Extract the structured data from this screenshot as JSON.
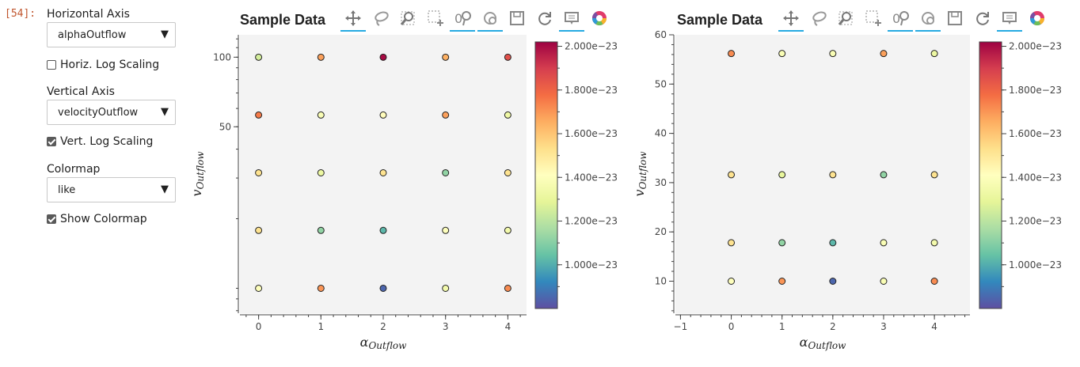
{
  "cell_prompt": "[54]:",
  "controls": {
    "horizontal_axis_label": "Horizontal Axis",
    "horizontal_axis_value": "alphaOutflow",
    "horiz_log_label": "Horiz. Log Scaling",
    "horiz_log_checked": false,
    "vertical_axis_label": "Vertical Axis",
    "vertical_axis_value": "velocityOutflow",
    "vert_log_label": "Vert. Log Scaling",
    "vert_log_checked": true,
    "colormap_label": "Colormap",
    "colormap_value": "like",
    "show_colormap_label": "Show Colormap",
    "show_colormap_checked": true
  },
  "toolbar_icons": [
    "pan-icon",
    "lasso-select-icon",
    "box-zoom-icon",
    "box-select-icon",
    "wheel-zoom-icon",
    "reset-zoom-icon",
    "save-icon",
    "reset-icon",
    "hover-icon",
    "bokeh-logo-icon"
  ],
  "chart_data": [
    {
      "type": "scatter",
      "title": "Sample Data",
      "xlabel": "α",
      "xlabel_sub": "Outflow",
      "ylabel": "v",
      "ylabel_sub": "Outflow",
      "y_scale": "log",
      "xlim": [
        -0.3,
        4.3
      ],
      "ylim": [
        7.8,
        125
      ],
      "x_ticks": [
        "0",
        "1",
        "2",
        "3",
        "4"
      ],
      "y_ticks": [
        "100",
        "50"
      ],
      "y_tick_values": [
        100,
        50
      ],
      "colorbar": {
        "min": 8e-24,
        "max": 2.02e-23,
        "ticks": [
          "1.000e−23",
          "1.200e−23",
          "1.400e−23",
          "1.600e−23",
          "1.800e−23",
          "2.000e−23"
        ],
        "tick_values": [
          1e-23,
          1.2e-23,
          1.4e-23,
          1.6e-23,
          1.8e-23,
          2e-23
        ]
      },
      "points": [
        {
          "x": 0,
          "y": 100,
          "c": 1.25e-23
        },
        {
          "x": 1,
          "y": 100,
          "c": 1.68e-23
        },
        {
          "x": 2,
          "y": 100,
          "c": 2e-23
        },
        {
          "x": 3,
          "y": 100,
          "c": 1.65e-23
        },
        {
          "x": 4,
          "y": 100,
          "c": 1.85e-23
        },
        {
          "x": 0,
          "y": 56.2,
          "c": 1.75e-23
        },
        {
          "x": 1,
          "y": 56.2,
          "c": 1.38e-23
        },
        {
          "x": 2,
          "y": 56.2,
          "c": 1.42e-23
        },
        {
          "x": 3,
          "y": 56.2,
          "c": 1.68e-23
        },
        {
          "x": 4,
          "y": 56.2,
          "c": 1.33e-23
        },
        {
          "x": 0,
          "y": 31.6,
          "c": 1.52e-23
        },
        {
          "x": 1,
          "y": 31.6,
          "c": 1.32e-23
        },
        {
          "x": 2,
          "y": 31.6,
          "c": 1.52e-23
        },
        {
          "x": 3,
          "y": 31.6,
          "c": 1.12e-23
        },
        {
          "x": 4,
          "y": 31.6,
          "c": 1.52e-23
        },
        {
          "x": 0,
          "y": 17.8,
          "c": 1.52e-23
        },
        {
          "x": 1,
          "y": 17.8,
          "c": 1.12e-23
        },
        {
          "x": 2,
          "y": 17.8,
          "c": 1.02e-23
        },
        {
          "x": 3,
          "y": 17.8,
          "c": 1.4e-23
        },
        {
          "x": 4,
          "y": 17.8,
          "c": 1.35e-23
        },
        {
          "x": 0,
          "y": 10,
          "c": 1.4e-23
        },
        {
          "x": 1,
          "y": 10,
          "c": 1.7e-23
        },
        {
          "x": 2,
          "y": 10,
          "c": 8.5e-24
        },
        {
          "x": 3,
          "y": 10,
          "c": 1.35e-23
        },
        {
          "x": 4,
          "y": 10,
          "c": 1.72e-23
        }
      ]
    },
    {
      "type": "scatter",
      "title": "Sample Data",
      "xlabel": "α",
      "xlabel_sub": "Outflow",
      "ylabel": "v",
      "ylabel_sub": "Outflow",
      "y_scale": "linear",
      "xlim": [
        -1.1,
        4.7
      ],
      "ylim": [
        3.5,
        60
      ],
      "x_ticks": [
        "−1",
        "0",
        "1",
        "2",
        "3",
        "4"
      ],
      "x_tick_values": [
        -1,
        0,
        1,
        2,
        3,
        4
      ],
      "y_ticks": [
        "10",
        "20",
        "30",
        "40",
        "50",
        "60"
      ],
      "y_tick_values": [
        10,
        20,
        30,
        40,
        50,
        60
      ],
      "colorbar": {
        "min": 8e-24,
        "max": 2.02e-23,
        "ticks": [
          "1.000e−23",
          "1.200e−23",
          "1.400e−23",
          "1.600e−23",
          "1.800e−23",
          "2.000e−23"
        ],
        "tick_values": [
          1e-23,
          1.2e-23,
          1.4e-23,
          1.6e-23,
          1.8e-23,
          2e-23
        ]
      },
      "points": [
        {
          "x": 0,
          "y": 56.2,
          "c": 1.72e-23
        },
        {
          "x": 1,
          "y": 56.2,
          "c": 1.38e-23
        },
        {
          "x": 2,
          "y": 56.2,
          "c": 1.38e-23
        },
        {
          "x": 3,
          "y": 56.2,
          "c": 1.68e-23
        },
        {
          "x": 4,
          "y": 56.2,
          "c": 1.32e-23
        },
        {
          "x": 0,
          "y": 31.6,
          "c": 1.52e-23
        },
        {
          "x": 1,
          "y": 31.6,
          "c": 1.3e-23
        },
        {
          "x": 2,
          "y": 31.6,
          "c": 1.52e-23
        },
        {
          "x": 3,
          "y": 31.6,
          "c": 1.12e-23
        },
        {
          "x": 4,
          "y": 31.6,
          "c": 1.52e-23
        },
        {
          "x": 0,
          "y": 17.8,
          "c": 1.52e-23
        },
        {
          "x": 1,
          "y": 17.8,
          "c": 1.12e-23
        },
        {
          "x": 2,
          "y": 17.8,
          "c": 1.02e-23
        },
        {
          "x": 3,
          "y": 17.8,
          "c": 1.38e-23
        },
        {
          "x": 4,
          "y": 17.8,
          "c": 1.35e-23
        },
        {
          "x": 0,
          "y": 10,
          "c": 1.4e-23
        },
        {
          "x": 1,
          "y": 10,
          "c": 1.7e-23
        },
        {
          "x": 2,
          "y": 10,
          "c": 8.5e-24
        },
        {
          "x": 3,
          "y": 10,
          "c": 1.38e-23
        },
        {
          "x": 4,
          "y": 10,
          "c": 1.72e-23
        }
      ]
    }
  ]
}
